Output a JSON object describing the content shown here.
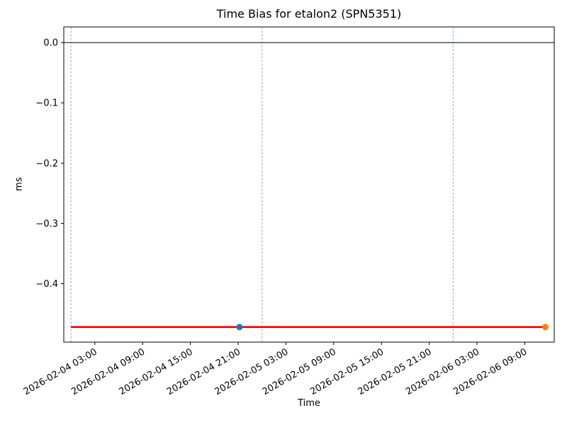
{
  "figure": {
    "background": "#ffffff"
  },
  "chart_data": {
    "type": "line",
    "title": "Time Bias for etalon2 (SPN5351)",
    "xlabel": "Time",
    "ylabel": "ms",
    "x_tick_labels": [
      "2026-02-04 03:00",
      "2026-02-04 09:00",
      "2026-02-04 15:00",
      "2026-02-04 21:00",
      "2026-02-05 03:00",
      "2026-02-05 09:00",
      "2026-02-05 15:00",
      "2026-02-05 21:00",
      "2026-02-06 03:00",
      "2026-02-06 09:00"
    ],
    "y_ticks": [
      0.0,
      -0.1,
      -0.2,
      -0.3,
      -0.4
    ],
    "xlim": [
      "2026-02-03 23:06",
      "2026-02-06 12:42"
    ],
    "ylim": [
      -0.497,
      0.026
    ],
    "grid": false,
    "legend": null,
    "hline_y": 0.0,
    "vlines": [
      "2026-02-04 00:00",
      "2026-02-05 00:00",
      "2026-02-06 00:00"
    ],
    "series": [
      {
        "name": "time-bias-line",
        "kind": "line",
        "color": "#ff0000",
        "x": [
          "2026-02-04 00:00",
          "2026-02-06 11:35"
        ],
        "y": [
          -0.472,
          -0.472
        ]
      },
      {
        "name": "measurement-point-blue",
        "kind": "scatter",
        "color": "#1f77b4",
        "x": [
          "2026-02-04 21:10"
        ],
        "y": [
          -0.472
        ]
      },
      {
        "name": "latest-point-orange",
        "kind": "scatter",
        "color": "#ff7f0e",
        "x": [
          "2026-02-06 11:35"
        ],
        "y": [
          -0.472
        ]
      }
    ],
    "colors": {
      "zero_line": "#000000",
      "midnight_gridline": "#7fb0d5",
      "spine": "#000000",
      "tick_label": "#000000"
    }
  }
}
